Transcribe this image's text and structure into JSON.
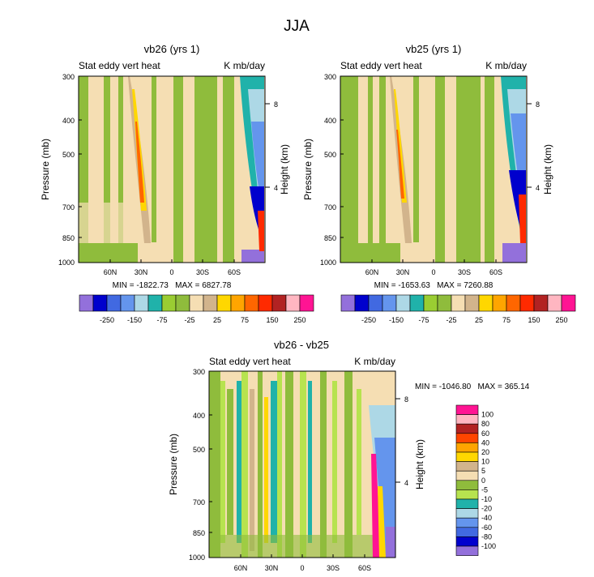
{
  "title": "JJA",
  "chart_data": [
    {
      "type": "heatmap",
      "title": "vb26 (yrs 1)",
      "left_label": "Stat eddy vert heat",
      "right_label": "K mb/day",
      "xlabel": "",
      "ylabel": "Pressure (mb)",
      "ylabel_right": "Height (km)",
      "x_ticks": [
        "60N",
        "30N",
        "0",
        "30S",
        "60S"
      ],
      "y_ticks": [
        "300",
        "400",
        "500",
        "700",
        "850",
        "1000"
      ],
      "height_ticks": [
        "8",
        "4"
      ],
      "stats": "MIN = -1822.73   MAX = 6827.78",
      "colorbar": "horizontal-below"
    },
    {
      "type": "heatmap",
      "title": "vb25 (yrs 1)",
      "left_label": "Stat eddy vert heat",
      "right_label": "K mb/day",
      "xlabel": "",
      "ylabel": "Pressure (mb)",
      "ylabel_right": "Height (km)",
      "x_ticks": [
        "60N",
        "30N",
        "0",
        "30S",
        "60S"
      ],
      "y_ticks": [
        "300",
        "400",
        "500",
        "700",
        "850",
        "1000"
      ],
      "height_ticks": [
        "8",
        "4"
      ],
      "stats": "MIN = -1653.63   MAX = 7260.88",
      "colorbar": "horizontal-below"
    },
    {
      "type": "heatmap",
      "title": "vb26 - vb25",
      "left_label": "Stat eddy vert heat",
      "right_label": "K mb/day",
      "xlabel": "",
      "ylabel": "Pressure (mb)",
      "ylabel_right": "Height (km)",
      "x_ticks": [
        "60N",
        "30N",
        "0",
        "30S",
        "60S"
      ],
      "y_ticks": [
        "300",
        "400",
        "500",
        "700",
        "850",
        "1000"
      ],
      "height_ticks": [
        "8",
        "4"
      ],
      "stats": "MIN = -1046.80   MAX = 365.14",
      "colorbar": "vertical-right"
    }
  ],
  "colorbar_top": {
    "labels": [
      "-250",
      "-150",
      "-75",
      "-25",
      "25",
      "75",
      "150",
      "250"
    ],
    "colors": [
      "#9370db",
      "#0000cd",
      "#4169e1",
      "#6495ed",
      "#add8e6",
      "#20b2aa",
      "#9acd32",
      "#8fbc3c",
      "#f5deb3",
      "#d2b48c",
      "#ffd700",
      "#ffa500",
      "#ff6600",
      "#ff2a00",
      "#b22222",
      "#ffb6c1",
      "#ff1493"
    ]
  },
  "colorbar_diff": {
    "labels": [
      "100",
      "80",
      "60",
      "40",
      "20",
      "10",
      "5",
      "0",
      "-5",
      "-10",
      "-20",
      "-40",
      "-60",
      "-80",
      "-100"
    ],
    "colors": [
      "#ff1493",
      "#ffb6c1",
      "#b22222",
      "#ff4500",
      "#ffa500",
      "#ffd700",
      "#d2b48c",
      "#f5deb3",
      "#8fbc3c",
      "#b7e34f",
      "#20b2aa",
      "#add8e6",
      "#6495ed",
      "#4169e1",
      "#0000cd",
      "#9370db"
    ]
  }
}
